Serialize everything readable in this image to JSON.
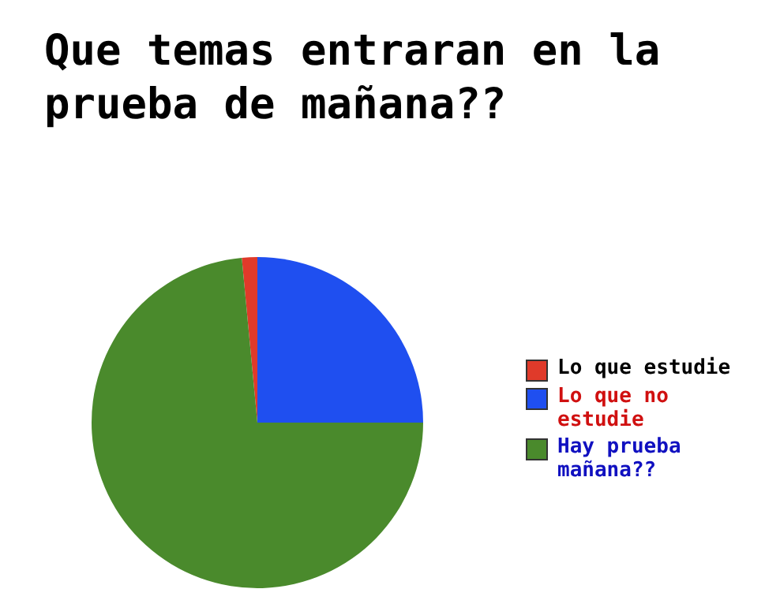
{
  "chart_data": {
    "type": "pie",
    "title": "Que temas entraran en la prueba de mañana??",
    "categories": [
      "Lo que estudie",
      "Lo que no estudie",
      "Hay prueba mañana??"
    ],
    "values": [
      1.5,
      25,
      73.5
    ],
    "colors": [
      "#e03a2a",
      "#1f4ff0",
      "#4a8a2c"
    ],
    "legend": "right"
  }
}
